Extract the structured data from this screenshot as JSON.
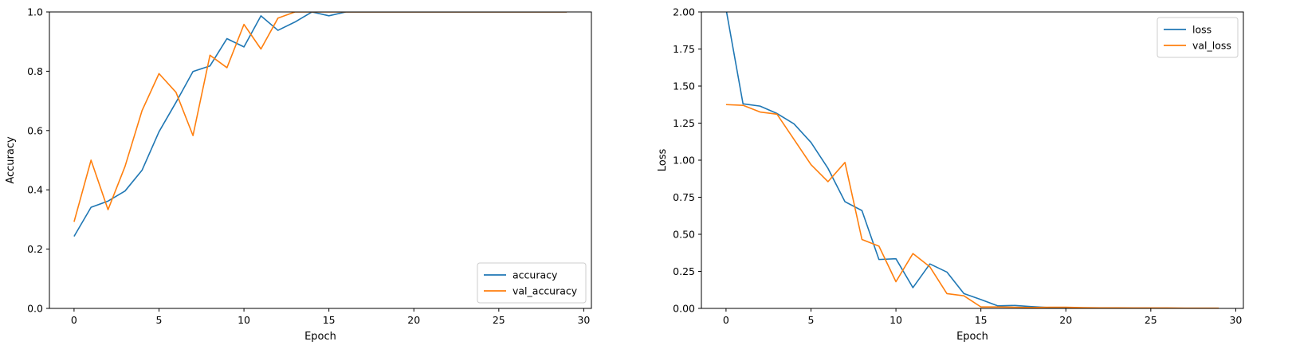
{
  "colors": {
    "series1": "#1f77b4",
    "series2": "#ff7f0e"
  },
  "chart_data": [
    {
      "type": "line",
      "xlabel": "Epoch",
      "ylabel": "Accuracy",
      "xlim": [
        -1.45,
        30.45
      ],
      "ylim": [
        0,
        1.0
      ],
      "xticks": [
        0,
        5,
        10,
        15,
        20,
        25,
        30
      ],
      "yticks": [
        0.0,
        0.2,
        0.4,
        0.6,
        0.8,
        1.0
      ],
      "ytick_labels": [
        "0.0",
        "0.2",
        "0.4",
        "0.6",
        "0.8",
        "1.0"
      ],
      "grid": false,
      "legend": "lower right",
      "x": [
        0,
        1,
        2,
        3,
        4,
        5,
        6,
        7,
        8,
        9,
        10,
        11,
        12,
        13,
        14,
        15,
        16,
        17,
        18,
        19,
        20,
        21,
        22,
        23,
        24,
        25,
        26,
        27,
        28,
        29
      ],
      "series": [
        {
          "name": "accuracy",
          "color": "#1f77b4",
          "values": [
            0.243,
            0.341,
            0.362,
            0.396,
            0.466,
            0.596,
            0.695,
            0.799,
            0.818,
            0.91,
            0.882,
            0.987,
            0.938,
            0.966,
            1.0,
            0.987,
            1.0,
            1.0,
            1.0,
            1.0,
            1.0,
            1.0,
            1.0,
            1.0,
            1.0,
            1.0,
            1.0,
            1.0,
            1.0,
            1.0
          ]
        },
        {
          "name": "val_accuracy",
          "color": "#ff7f0e",
          "values": [
            0.292,
            0.5,
            0.333,
            0.479,
            0.667,
            0.792,
            0.729,
            0.583,
            0.854,
            0.812,
            0.958,
            0.875,
            0.979,
            1.0,
            1.0,
            1.0,
            1.0,
            1.0,
            1.0,
            1.0,
            1.0,
            1.0,
            1.0,
            1.0,
            1.0,
            1.0,
            1.0,
            1.0,
            1.0,
            1.0
          ]
        }
      ]
    },
    {
      "type": "line",
      "xlabel": "Epoch",
      "ylabel": "Loss",
      "xlim": [
        -1.45,
        30.45
      ],
      "ylim": [
        0,
        2.0
      ],
      "xticks": [
        0,
        5,
        10,
        15,
        20,
        25,
        30
      ],
      "yticks": [
        0.0,
        0.25,
        0.5,
        0.75,
        1.0,
        1.25,
        1.5,
        1.75,
        2.0
      ],
      "ytick_labels": [
        "0.00",
        "0.25",
        "0.50",
        "0.75",
        "1.00",
        "1.25",
        "1.50",
        "1.75",
        "2.00"
      ],
      "grid": false,
      "legend": "upper right",
      "x": [
        0,
        1,
        2,
        3,
        4,
        5,
        6,
        7,
        8,
        9,
        10,
        11,
        12,
        13,
        14,
        15,
        16,
        17,
        18,
        19,
        20,
        21,
        22,
        23,
        24,
        25,
        26,
        27,
        28,
        29
      ],
      "series": [
        {
          "name": "loss",
          "color": "#1f77b4",
          "values": [
            2.02,
            1.38,
            1.365,
            1.315,
            1.245,
            1.12,
            0.945,
            0.72,
            0.66,
            0.33,
            0.335,
            0.14,
            0.3,
            0.245,
            0.1,
            0.06,
            0.017,
            0.02,
            0.012,
            0.006,
            0.004,
            0.003,
            0.002,
            0.002,
            0.001,
            0.001,
            0.001,
            0.001,
            0.001,
            0.001
          ]
        },
        {
          "name": "val_loss",
          "color": "#ff7f0e",
          "values": [
            1.375,
            1.37,
            1.325,
            1.31,
            1.14,
            0.97,
            0.855,
            0.985,
            0.465,
            0.42,
            0.18,
            0.37,
            0.28,
            0.1,
            0.085,
            0.01,
            0.01,
            0.008,
            0.006,
            0.008,
            0.008,
            0.005,
            0.004,
            0.004,
            0.003,
            0.003,
            0.003,
            0.002,
            0.002,
            0.002
          ]
        }
      ]
    }
  ]
}
